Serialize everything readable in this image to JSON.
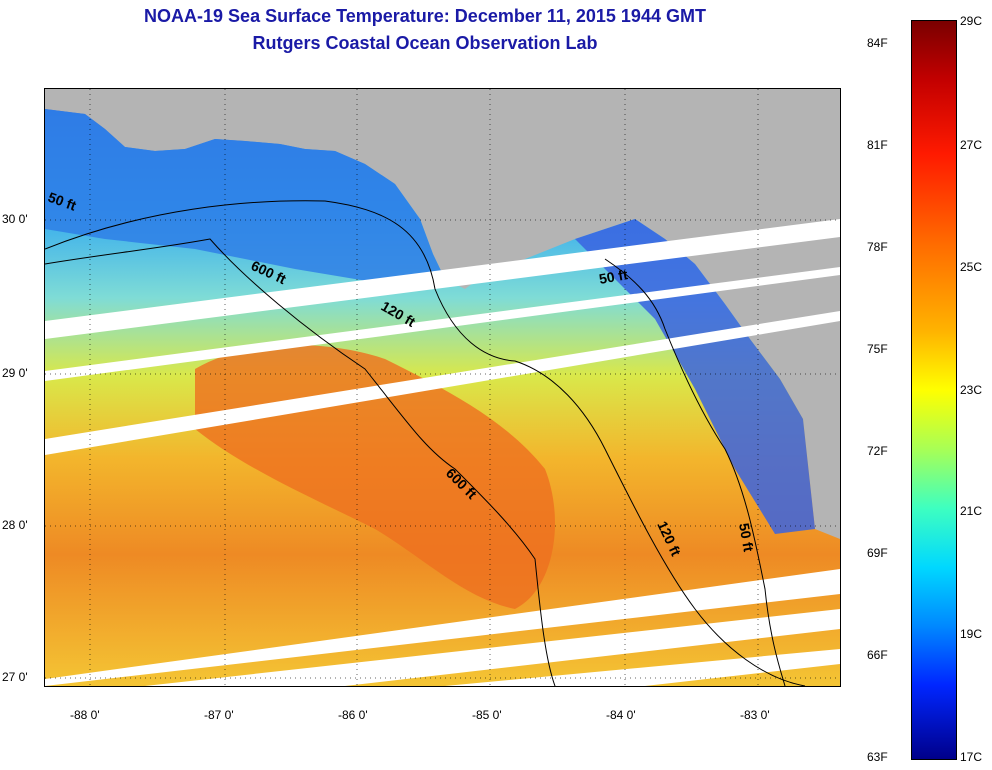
{
  "title": {
    "line1": "NOAA-19 Sea Surface Temperature:  December 11, 2015 1944 GMT",
    "line2": "Rutgers Coastal Ocean Observation Lab"
  },
  "axes": {
    "lat_labels": [
      "30 0'",
      "29 0'",
      "28 0'",
      "27 0'"
    ],
    "lon_labels": [
      "-88 0'",
      "-87 0'",
      "-86 0'",
      "-85 0'",
      "-84 0'",
      "-83 0'"
    ]
  },
  "contour_labels": [
    "50 ft",
    "600 ft",
    "120 ft",
    "50 ft",
    "600 ft",
    "120 ft",
    "50 ft"
  ],
  "colorbar": {
    "fahrenheit": [
      "84F",
      "81F",
      "78F",
      "75F",
      "72F",
      "69F",
      "66F",
      "63F"
    ],
    "celsius": [
      "29C",
      "27C",
      "25C",
      "23C",
      "21C",
      "19C",
      "17C"
    ]
  }
}
